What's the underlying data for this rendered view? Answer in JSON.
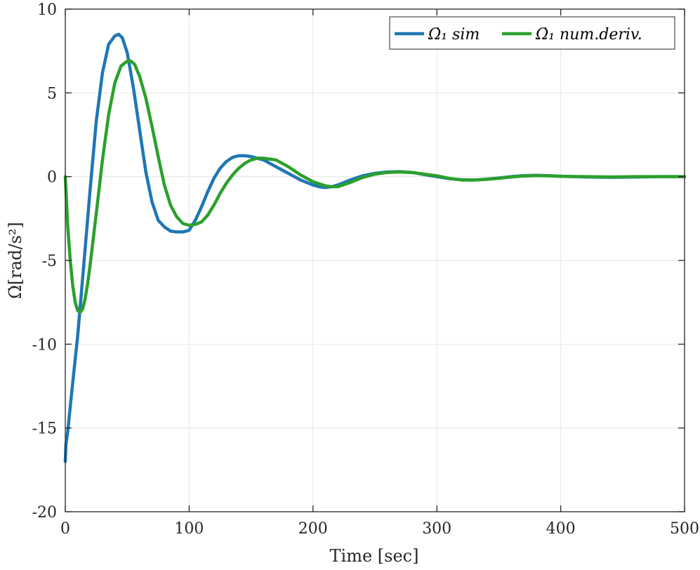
{
  "chart_data": {
    "type": "line",
    "xlabel": "Time [sec]",
    "ylabel": "Ω̇[rad/s²]",
    "xlim": [
      0,
      500
    ],
    "ylim": [
      -20,
      10
    ],
    "xticks": [
      0,
      100,
      200,
      300,
      400,
      500
    ],
    "yticks": [
      10,
      5,
      0,
      -5,
      -10,
      -15,
      -20
    ],
    "grid": true,
    "legend_position": "top-right",
    "series": [
      {
        "name": "Ω̇₁ sim",
        "color": "#1f77b4",
        "x": [
          0,
          0.5,
          2,
          5,
          10,
          15,
          20,
          25,
          30,
          35,
          40,
          43,
          46,
          50,
          55,
          60,
          65,
          70,
          75,
          80,
          85,
          90,
          95,
          100,
          105,
          110,
          115,
          120,
          125,
          130,
          135,
          140,
          145,
          150,
          155,
          160,
          165,
          170,
          180,
          190,
          200,
          205,
          210,
          215,
          220,
          230,
          240,
          250,
          260,
          270,
          280,
          290,
          300,
          310,
          320,
          330,
          340,
          350,
          360,
          370,
          380,
          390,
          400,
          420,
          440,
          460,
          480,
          500
        ],
        "y": [
          -17,
          -16,
          -15.2,
          -13,
          -9.5,
          -5.2,
          -0.8,
          3.3,
          6.2,
          7.9,
          8.4,
          8.5,
          8.3,
          7.4,
          5.3,
          2.8,
          0.3,
          -1.5,
          -2.6,
          -3.0,
          -3.25,
          -3.3,
          -3.3,
          -3.2,
          -2.6,
          -1.8,
          -0.9,
          -0.1,
          0.5,
          0.9,
          1.15,
          1.25,
          1.25,
          1.2,
          1.1,
          1.0,
          0.8,
          0.6,
          0.2,
          -0.2,
          -0.5,
          -0.6,
          -0.65,
          -0.6,
          -0.5,
          -0.2,
          0.05,
          0.2,
          0.28,
          0.3,
          0.25,
          0.12,
          0.0,
          -0.12,
          -0.18,
          -0.2,
          -0.15,
          -0.08,
          0.0,
          0.06,
          0.08,
          0.06,
          0.03,
          -0.02,
          -0.04,
          -0.02,
          0.0,
          0.0
        ]
      },
      {
        "name": "Ω̇₁ num.deriv.",
        "color": "#2ca02c",
        "x": [
          0,
          1,
          2,
          4,
          6,
          8,
          10,
          12,
          14,
          16,
          18,
          20,
          25,
          30,
          35,
          40,
          45,
          50,
          53,
          56,
          60,
          65,
          70,
          75,
          80,
          85,
          90,
          95,
          100,
          105,
          110,
          115,
          120,
          125,
          130,
          135,
          140,
          145,
          150,
          155,
          160,
          165,
          170,
          175,
          180,
          190,
          200,
          210,
          215,
          220,
          230,
          240,
          250,
          260,
          270,
          280,
          290,
          300,
          310,
          320,
          330,
          340,
          350,
          360,
          370,
          380,
          390,
          400,
          420,
          440,
          460,
          480,
          500
        ],
        "y": [
          0,
          -1.5,
          -3.0,
          -5.0,
          -6.5,
          -7.5,
          -8.0,
          -8.1,
          -7.9,
          -7.3,
          -6.4,
          -5.3,
          -2.2,
          1.0,
          3.7,
          5.6,
          6.6,
          6.9,
          6.9,
          6.7,
          6.0,
          4.7,
          3.0,
          1.2,
          -0.5,
          -1.7,
          -2.4,
          -2.8,
          -2.9,
          -2.85,
          -2.7,
          -2.3,
          -1.7,
          -1.0,
          -0.4,
          0.1,
          0.5,
          0.8,
          1.0,
          1.1,
          1.1,
          1.05,
          1.0,
          0.8,
          0.6,
          0.1,
          -0.3,
          -0.55,
          -0.6,
          -0.6,
          -0.35,
          -0.05,
          0.15,
          0.25,
          0.28,
          0.25,
          0.15,
          0.05,
          -0.1,
          -0.2,
          -0.2,
          -0.16,
          -0.1,
          -0.02,
          0.04,
          0.06,
          0.05,
          0.02,
          0.0,
          -0.02,
          0.0,
          0.0,
          0.0
        ]
      }
    ]
  }
}
